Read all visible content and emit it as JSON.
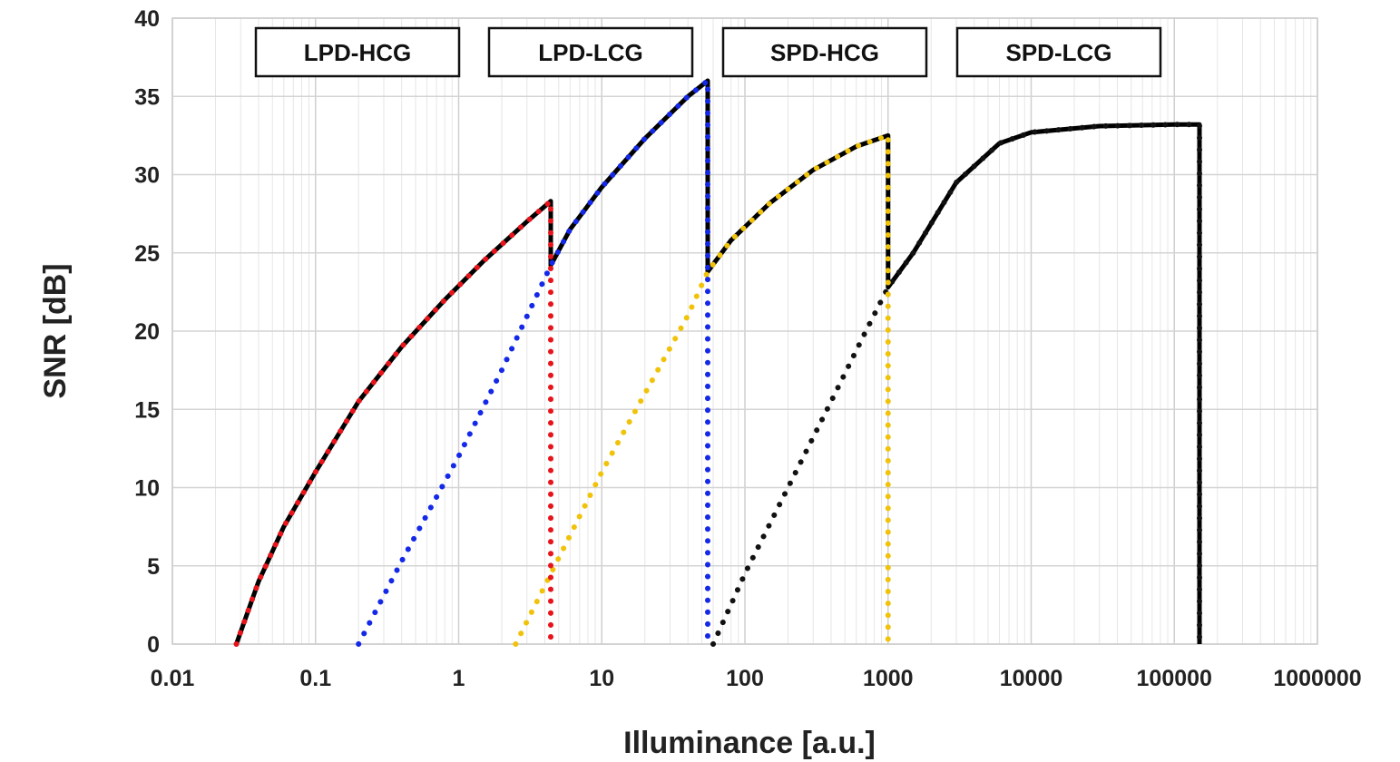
{
  "chart_data": {
    "type": "line",
    "title": "",
    "xlabel": "Illuminance [a.u.]",
    "ylabel": "SNR [dB]",
    "x_scale": "log",
    "xlim": [
      0.01,
      1000000
    ],
    "ylim": [
      0,
      40
    ],
    "x_ticks": [
      "0.01",
      "0.1",
      "1",
      "10",
      "100",
      "1000",
      "10000",
      "100000",
      "1000000"
    ],
    "y_ticks": [
      "0",
      "5",
      "10",
      "15",
      "20",
      "25",
      "30",
      "35",
      "40"
    ],
    "grid": true,
    "legend": "none",
    "region_labels": [
      {
        "text": "LPD-HCG"
      },
      {
        "text": "LPD-LCG"
      },
      {
        "text": "SPD-HCG"
      },
      {
        "text": "SPD-LCG"
      }
    ],
    "series": [
      {
        "style": "solid",
        "color": "#000000",
        "points": [
          [
            0.028,
            0
          ],
          [
            0.04,
            4
          ],
          [
            0.06,
            7.5
          ],
          [
            0.1,
            11
          ],
          [
            0.2,
            15.5
          ],
          [
            0.4,
            19
          ],
          [
            0.8,
            22
          ],
          [
            1.5,
            24.5
          ],
          [
            3,
            27
          ],
          [
            4.4,
            28.3
          ],
          [
            4.4,
            24.2
          ],
          [
            6,
            26.5
          ],
          [
            10,
            29.2
          ],
          [
            20,
            32.3
          ],
          [
            40,
            35
          ],
          [
            55,
            36
          ],
          [
            55,
            23.8
          ],
          [
            80,
            25.8
          ],
          [
            150,
            28.2
          ],
          [
            300,
            30.3
          ],
          [
            600,
            31.8
          ],
          [
            1000,
            32.5
          ],
          [
            1000,
            22.8
          ],
          [
            1500,
            25
          ],
          [
            3000,
            29.5
          ],
          [
            6000,
            32
          ],
          [
            10000,
            32.7
          ],
          [
            30000,
            33.1
          ],
          [
            100000,
            33.2
          ],
          [
            150000,
            33.2
          ],
          [
            150000,
            0
          ]
        ]
      },
      {
        "style": "dotted",
        "color": "#e8141b",
        "points": [
          [
            0.028,
            0
          ],
          [
            0.04,
            4
          ],
          [
            0.06,
            7.5
          ],
          [
            0.1,
            11
          ],
          [
            0.2,
            15.5
          ],
          [
            0.4,
            19
          ],
          [
            0.8,
            22
          ],
          [
            1.5,
            24.5
          ],
          [
            3,
            27
          ],
          [
            4.4,
            28.3
          ],
          [
            4.4,
            0
          ]
        ]
      },
      {
        "style": "dotted",
        "color": "#1428e8",
        "points": [
          [
            0.2,
            0
          ],
          [
            0.4,
            5.3
          ],
          [
            1,
            12
          ],
          [
            2,
            17.5
          ],
          [
            4.4,
            24.2
          ],
          [
            6,
            26.5
          ],
          [
            10,
            29.2
          ],
          [
            20,
            32.3
          ],
          [
            40,
            35
          ],
          [
            55,
            36
          ],
          [
            55,
            0
          ]
        ]
      },
      {
        "style": "dotted",
        "color": "#f0c30a",
        "points": [
          [
            2.5,
            0
          ],
          [
            5,
            5.5
          ],
          [
            10,
            11
          ],
          [
            20,
            16
          ],
          [
            40,
            21
          ],
          [
            55,
            23.8
          ],
          [
            80,
            25.8
          ],
          [
            150,
            28.2
          ],
          [
            300,
            30.3
          ],
          [
            600,
            31.8
          ],
          [
            1000,
            32.5
          ],
          [
            1000,
            0
          ]
        ]
      },
      {
        "style": "dotted",
        "color": "#111111",
        "points": [
          [
            60,
            0
          ],
          [
            100,
            4.5
          ],
          [
            200,
            10
          ],
          [
            400,
            15.5
          ],
          [
            700,
            20
          ],
          [
            1000,
            22.8
          ],
          [
            1500,
            25
          ],
          [
            3000,
            29.5
          ],
          [
            6000,
            32
          ],
          [
            10000,
            32.7
          ],
          [
            30000,
            33.1
          ],
          [
            100000,
            33.2
          ],
          [
            150000,
            33.2
          ],
          [
            150000,
            0
          ]
        ]
      }
    ]
  }
}
